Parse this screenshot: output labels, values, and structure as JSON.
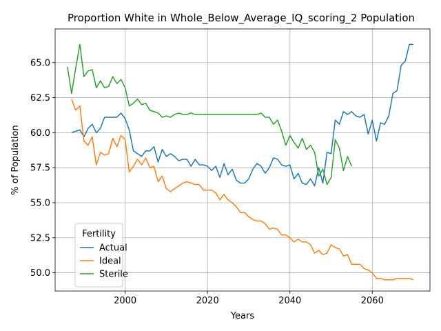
{
  "chart_data": {
    "type": "line",
    "title": "Proportion White in Whole_Below_Average_IQ_scoring_2 Population",
    "xlabel": "Years",
    "ylabel": "% of Population",
    "xlim": [
      1983,
      2074
    ],
    "ylim": [
      48.7,
      67.4
    ],
    "x_ticks": [
      2000,
      2020,
      2040,
      2060
    ],
    "y_ticks": [
      50.0,
      52.5,
      55.0,
      57.5,
      60.0,
      62.5,
      65.0
    ],
    "y_tick_labels": [
      "50.0",
      "52.5",
      "55.0",
      "57.5",
      "60.0",
      "62.5",
      "65.0"
    ],
    "grid": true,
    "legend": {
      "title": "Fertility",
      "placement": "lower-left"
    },
    "series": [
      {
        "name": "Actual",
        "color": "#1f77b4",
        "x": [
          1987,
          1988,
          1989,
          1990,
          1991,
          1992,
          1993,
          1994,
          1995,
          1996,
          1997,
          1998,
          1999,
          2000,
          2001,
          2002,
          2003,
          2004,
          2005,
          2006,
          2007,
          2008,
          2009,
          2010,
          2011,
          2012,
          2013,
          2014,
          2015,
          2016,
          2017,
          2018,
          2019,
          2020,
          2021,
          2022,
          2023,
          2024,
          2025,
          2026,
          2027,
          2028,
          2029,
          2030,
          2031,
          2032,
          2033,
          2034,
          2035,
          2036,
          2037,
          2038,
          2039,
          2040,
          2041,
          2042,
          2043,
          2044,
          2045,
          2046,
          2047,
          2048,
          2049,
          2050,
          2051,
          2052,
          2053,
          2054,
          2055,
          2056,
          2057,
          2058,
          2059,
          2060,
          2061,
          2062,
          2063,
          2064,
          2065,
          2066,
          2067,
          2068,
          2069,
          2070
        ],
        "y": [
          60.0,
          60.1,
          60.2,
          59.7,
          60.3,
          60.6,
          60.0,
          60.3,
          61.1,
          61.1,
          61.1,
          61.1,
          61.4,
          61.0,
          60.2,
          58.7,
          58.5,
          58.3,
          58.7,
          58.7,
          59.0,
          57.9,
          58.8,
          58.3,
          58.5,
          58.3,
          58.0,
          58.1,
          58.1,
          57.6,
          58.1,
          57.7,
          57.7,
          57.6,
          57.3,
          57.6,
          56.8,
          57.8,
          57.0,
          57.4,
          56.6,
          56.4,
          56.4,
          56.7,
          57.4,
          57.8,
          57.6,
          57.1,
          57.5,
          58.2,
          58.1,
          57.7,
          57.6,
          57.7,
          56.7,
          57.1,
          56.4,
          56.3,
          56.7,
          56.2,
          57.5,
          56.4,
          58.6,
          58.5,
          60.9,
          60.6,
          61.5,
          61.3,
          61.5,
          61.2,
          61.1,
          61.3,
          59.9,
          60.9,
          59.4,
          60.7,
          60.6,
          61.2,
          62.8,
          63.0,
          64.8,
          65.1,
          66.3,
          66.3
        ]
      },
      {
        "name": "Ideal",
        "color": "#ff7f0e",
        "x": [
          1987,
          1988,
          1989,
          1990,
          1991,
          1992,
          1993,
          1994,
          1995,
          1996,
          1997,
          1998,
          1999,
          2000,
          2001,
          2002,
          2003,
          2004,
          2005,
          2006,
          2007,
          2008,
          2009,
          2010,
          2011,
          2012,
          2013,
          2014,
          2015,
          2016,
          2017,
          2018,
          2019,
          2020,
          2021,
          2022,
          2023,
          2024,
          2025,
          2026,
          2027,
          2028,
          2029,
          2030,
          2031,
          2032,
          2033,
          2034,
          2035,
          2036,
          2037,
          2038,
          2039,
          2040,
          2041,
          2042,
          2043,
          2044,
          2045,
          2046,
          2047,
          2048,
          2049,
          2050,
          2051,
          2052,
          2053,
          2054,
          2055,
          2056,
          2057,
          2058,
          2059,
          2060,
          2061,
          2062,
          2063,
          2064,
          2065,
          2066,
          2067,
          2068,
          2069,
          2070
        ],
        "y": [
          62.4,
          61.6,
          61.9,
          59.4,
          59.1,
          59.7,
          57.7,
          58.6,
          58.4,
          58.5,
          59.6,
          59.0,
          59.8,
          59.5,
          57.2,
          57.6,
          58.1,
          57.7,
          58.2,
          57.5,
          57.6,
          56.5,
          56.9,
          56.0,
          55.8,
          56.0,
          56.2,
          56.4,
          56.5,
          56.4,
          56.3,
          56.3,
          55.9,
          55.9,
          55.9,
          55.7,
          55.2,
          55.6,
          55.2,
          55.0,
          54.7,
          54.3,
          54.3,
          54.0,
          53.8,
          53.7,
          53.7,
          53.5,
          53.1,
          53.2,
          53.1,
          52.7,
          52.7,
          52.5,
          52.2,
          52.4,
          52.2,
          52.2,
          52.0,
          51.4,
          51.6,
          51.3,
          51.4,
          52.0,
          51.8,
          51.7,
          51.2,
          51.3,
          50.6,
          50.6,
          50.6,
          50.3,
          50.2,
          50.0,
          49.6,
          49.6,
          49.5,
          49.5,
          49.5,
          49.6,
          49.6,
          49.6,
          49.6,
          49.5
        ]
      },
      {
        "name": "Sterile",
        "color": "#2ca02c",
        "x": [
          1986,
          1987,
          1988,
          1989,
          1990,
          1991,
          1992,
          1993,
          1994,
          1995,
          1996,
          1997,
          1998,
          1999,
          2000,
          2001,
          2002,
          2003,
          2004,
          2005,
          2006,
          2007,
          2008,
          2009,
          2010,
          2011,
          2012,
          2013,
          2014,
          2015,
          2016,
          2017,
          2018,
          2019,
          2020,
          2021,
          2022,
          2023,
          2024,
          2025,
          2026,
          2027,
          2028,
          2029,
          2030,
          2031,
          2032,
          2033,
          2034,
          2035,
          2036,
          2037,
          2038,
          2039,
          2040,
          2041,
          2042,
          2043,
          2044,
          2045,
          2046,
          2047,
          2048,
          2049,
          2050,
          2051,
          2052,
          2053,
          2054,
          2055
        ],
        "y": [
          64.7,
          62.8,
          64.6,
          66.3,
          64.0,
          64.4,
          64.5,
          63.2,
          63.7,
          63.2,
          63.3,
          64.0,
          63.5,
          63.8,
          63.2,
          61.9,
          62.1,
          62.4,
          62.0,
          62.1,
          61.6,
          61.5,
          61.4,
          61.1,
          61.2,
          61.1,
          61.3,
          61.4,
          61.3,
          61.3,
          61.4,
          61.3,
          61.3,
          61.3,
          61.3,
          61.3,
          61.3,
          61.3,
          61.3,
          61.3,
          61.3,
          61.3,
          61.3,
          61.3,
          61.3,
          61.3,
          61.3,
          61.4,
          61.1,
          61.1,
          60.6,
          60.9,
          60.1,
          59.1,
          59.8,
          59.3,
          58.9,
          59.6,
          58.8,
          59.1,
          58.6,
          56.9,
          57.4,
          56.3,
          56.8,
          59.5,
          58.9,
          57.3,
          58.3,
          57.6
        ]
      }
    ]
  }
}
